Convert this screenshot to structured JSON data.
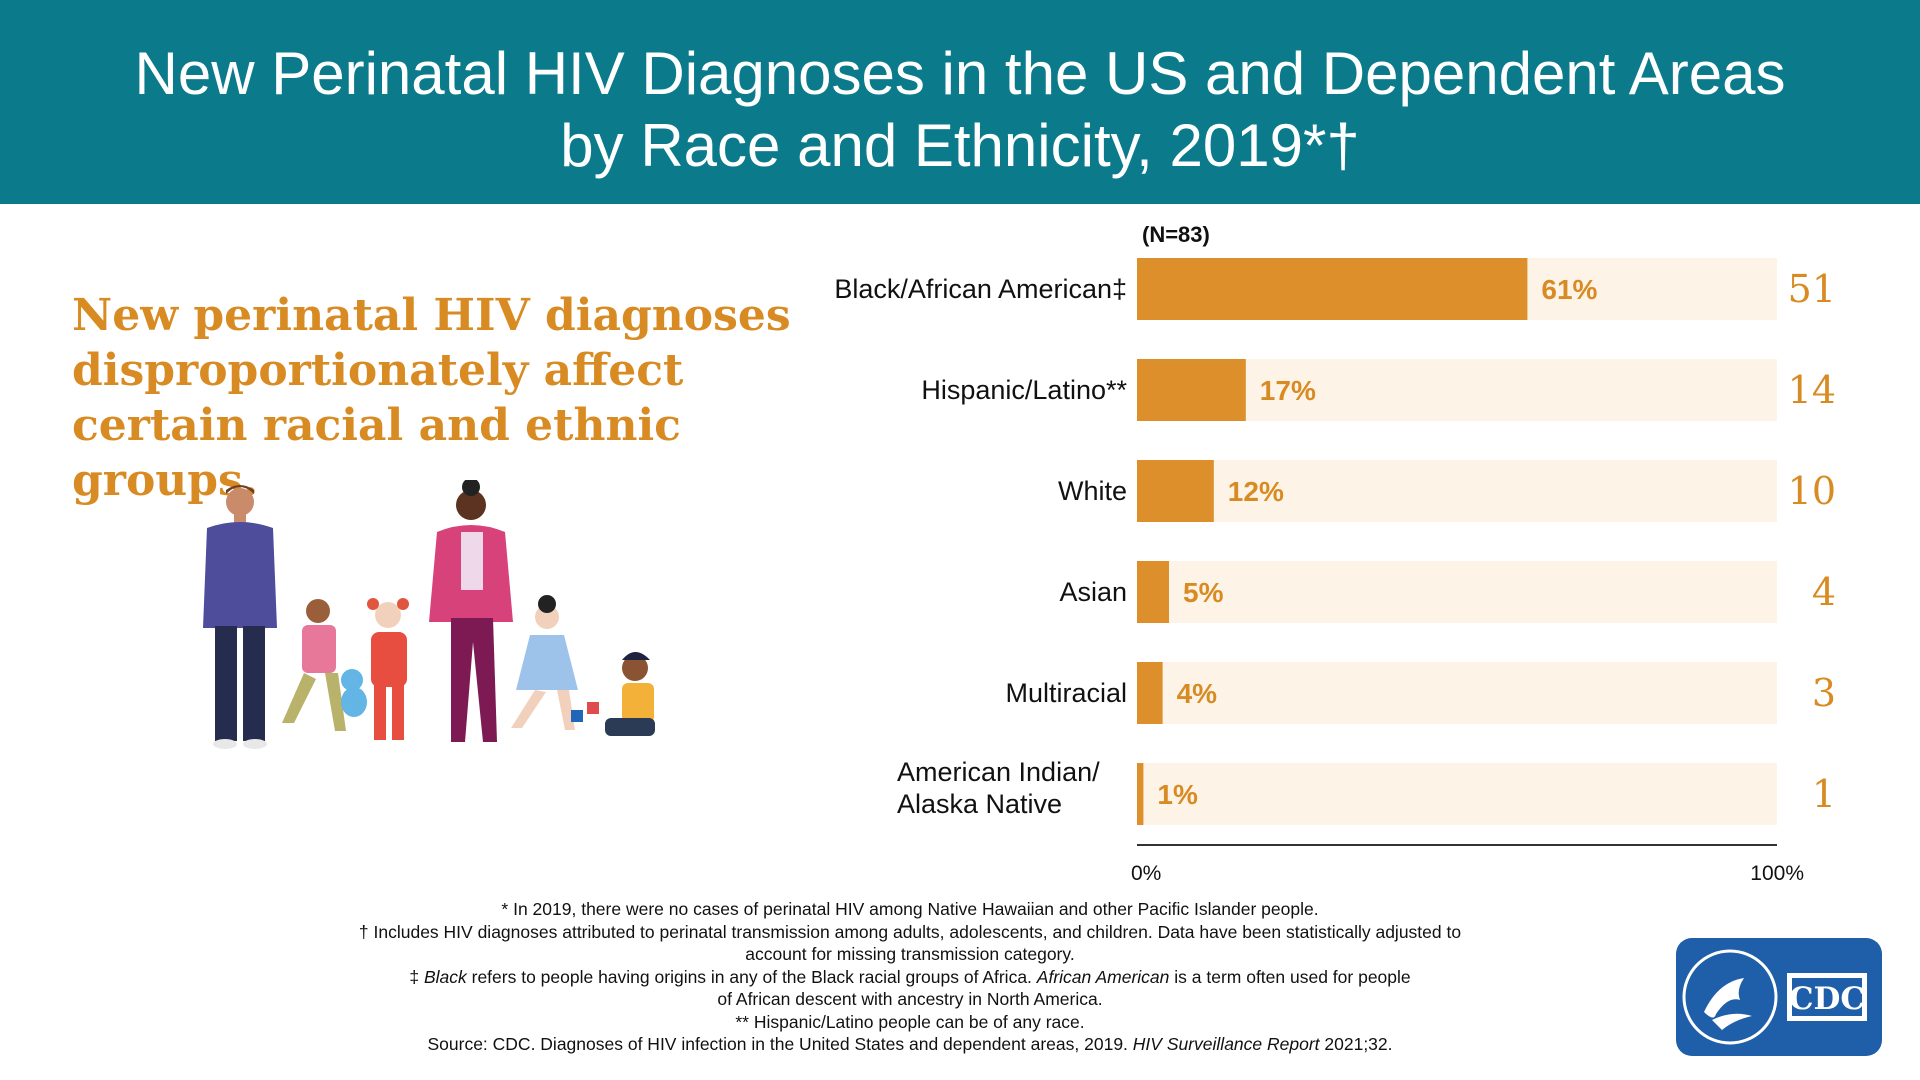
{
  "header": {
    "title_line1": "New Perinatal HIV Diagnoses in the US and Dependent Areas",
    "title_line2": "by Race and Ethnicity, 2019*†"
  },
  "tagline": "New perinatal HIV diagnoses disproportionately affect certain racial and ethnic groups.",
  "colors": {
    "header_bg": "#0b7b8c",
    "bar": "#dc8f2a",
    "bar_track": "#fdf3e6",
    "accent_text": "#d98b23"
  },
  "chart_data": {
    "type": "bar",
    "orientation": "horizontal",
    "n_label": "(N=83)",
    "categories": [
      "Black/African American‡",
      "Hispanic/Latino**",
      "White",
      "Asian",
      "Multiracial",
      "American Indian/ Alaska Native"
    ],
    "percent_values": [
      61,
      17,
      12,
      5,
      4,
      1
    ],
    "percent_labels": [
      "61%",
      "17%",
      "12%",
      "5%",
      "4%",
      "1%"
    ],
    "counts": [
      51,
      14,
      10,
      4,
      3,
      1
    ],
    "xlim": [
      0,
      100
    ],
    "axis_labels": {
      "min": "0%",
      "max": "100%"
    },
    "grid": false,
    "legend": "none"
  },
  "footnotes": {
    "f1": "* In 2019, there were no cases of perinatal HIV among Native Hawaiian and other Pacific Islander people.",
    "f2a": "† Includes HIV diagnoses attributed to perinatal transmission among adults, adolescents, and children. Data have been statistically adjusted to",
    "f2b": "account for missing transmission category.",
    "f3_mark": "‡ ",
    "f3_black": "Black",
    "f3_mid": " refers to people having origins in any of the Black racial groups of Africa. ",
    "f3_aa": "African American",
    "f3_end": " is a term often used for people",
    "f3b": "of African descent with ancestry in North America.",
    "f4": "** Hispanic/Latino people can be of any race.",
    "source_a": "Source: CDC. Diagnoses of HIV infection in the United States and dependent areas, 2019. ",
    "source_title": "HIV Surveillance Report",
    "source_end": " 2021;32."
  },
  "logo": {
    "text": "CDC",
    "seal_icon": "hhs-eagle-seal-icon"
  }
}
